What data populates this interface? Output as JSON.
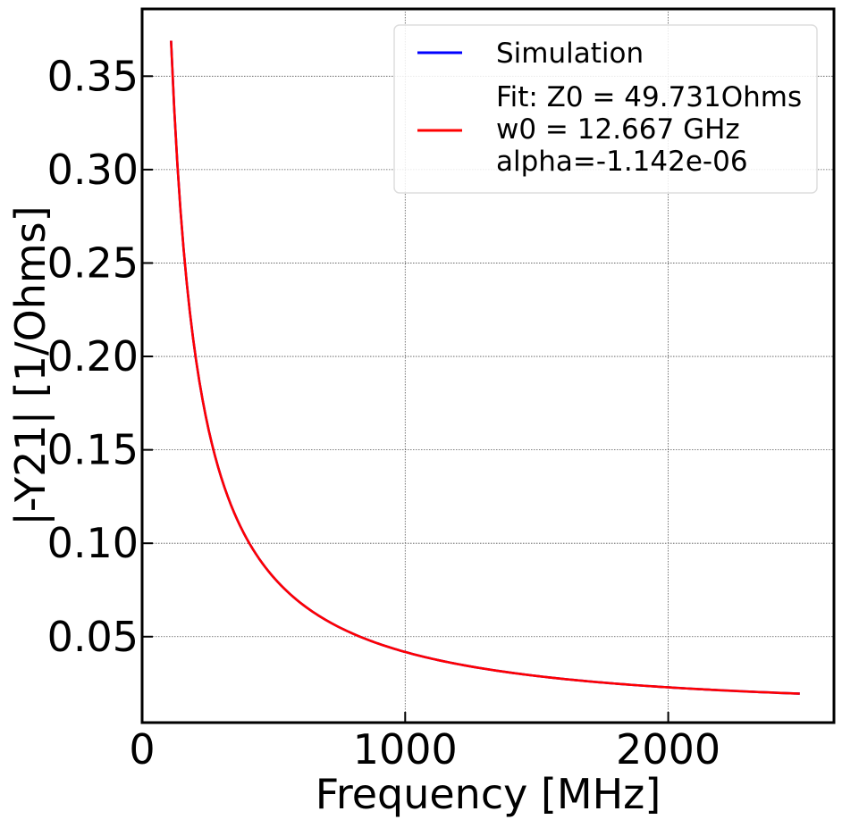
{
  "chart_data": {
    "type": "line",
    "xlabel": "Frequency [MHz]",
    "ylabel": "|-Y21| [1/Ohms]",
    "xlim": [
      0,
      2630
    ],
    "ylim": [
      0.004,
      0.386
    ],
    "xticks": [
      0,
      1000,
      2000
    ],
    "xtick_labels": [
      "0",
      "1000",
      "2000"
    ],
    "yticks": [
      0.05,
      0.1,
      0.15,
      0.2,
      0.25,
      0.3,
      0.35
    ],
    "ytick_labels": [
      "0.05",
      "0.10",
      "0.15",
      "0.20",
      "0.25",
      "0.30",
      "0.35"
    ],
    "grid": true,
    "legend_position": "top-right",
    "series": [
      {
        "name": "Simulation",
        "color": "#0000ff",
        "x": [
          110,
          150,
          200,
          250,
          300,
          400,
          500,
          600,
          800,
          1000,
          1200,
          1500,
          2000,
          2500
        ],
        "y": [
          0.369,
          0.272,
          0.204,
          0.163,
          0.136,
          0.102,
          0.0816,
          0.068,
          0.051,
          0.0412,
          0.0345,
          0.0282,
          0.0227,
          0.0195
        ]
      },
      {
        "name": "Fit: Z0 = 49.731Ohms\nw0 = 12.667 GHz\nalpha=-1.142e-06",
        "color": "#ff0000",
        "x": [
          110,
          150,
          200,
          250,
          300,
          400,
          500,
          600,
          800,
          1000,
          1200,
          1500,
          2000,
          2500
        ],
        "y": [
          0.369,
          0.272,
          0.204,
          0.163,
          0.136,
          0.102,
          0.0816,
          0.068,
          0.051,
          0.0412,
          0.0345,
          0.0282,
          0.0227,
          0.0195
        ]
      }
    ]
  }
}
